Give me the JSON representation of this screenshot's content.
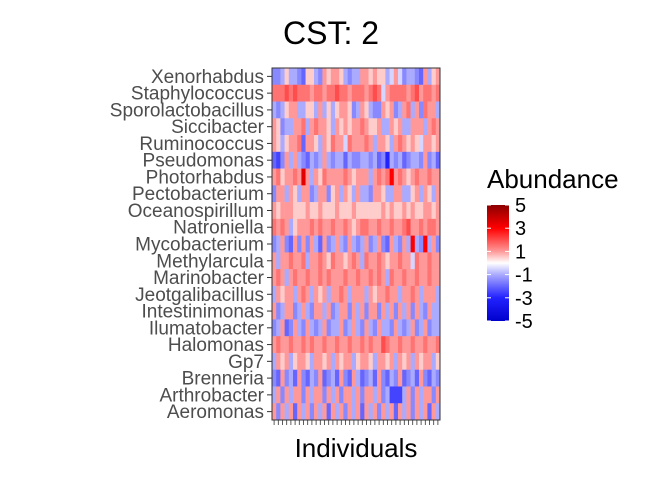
{
  "chart_data": {
    "type": "heatmap",
    "title": "CST: 2",
    "xlabel": "Individuals",
    "ylabel": "",
    "rows": [
      "Xenorhabdus",
      "Staphylococcus",
      "Sporolactobacillus",
      "Siccibacter",
      "Ruminococcus",
      "Pseudomonas",
      "Photorhabdus",
      "Pectobacterium",
      "Oceanospirillum",
      "Natroniella",
      "Mycobacterium",
      "Methylarcula",
      "Marinobacter",
      "Jeotgalibacillus",
      "Intestinimonas",
      "Ilumatobacter",
      "Halomonas",
      "Gp7",
      "Brenneria",
      "Arthrobacter",
      "Aeromonas"
    ],
    "n_columns": 40,
    "x_tick_labels": "none",
    "values": [
      [
        -1.5,
        -1.5,
        -1,
        0.5,
        -1,
        -1,
        -1.5,
        -2,
        0.5,
        0.5,
        -1,
        -1.5,
        1,
        0.5,
        1,
        1,
        0.5,
        -1,
        -1.5,
        -1,
        -1,
        1,
        1,
        0.5,
        1,
        0.5,
        0.5,
        -1,
        -0.5,
        1,
        -0.5,
        -1.5,
        -1,
        -1,
        -1.5,
        -2,
        1,
        -1,
        0.5,
        1
      ],
      [
        1.5,
        1.5,
        1.5,
        2,
        1.5,
        2,
        1.5,
        1.5,
        1.5,
        1,
        1.5,
        1.5,
        1,
        1.5,
        1.5,
        2,
        1.5,
        1.5,
        1,
        1.5,
        1.5,
        1.5,
        1,
        1.5,
        2,
        1.5,
        -0.5,
        1,
        1.5,
        1.5,
        1.5,
        1.5,
        1,
        1.5,
        2,
        1,
        1.5,
        1.5,
        1,
        1.5
      ],
      [
        -1,
        -1.5,
        -1,
        0.5,
        1,
        1,
        -1,
        -1,
        0.5,
        0.5,
        -1,
        1,
        -1,
        0.5,
        -1,
        0.5,
        1,
        1,
        0.5,
        -1.5,
        -1,
        1,
        0.5,
        -1,
        -1.5,
        -1.5,
        1,
        0.5,
        1,
        -1.5,
        -1,
        1,
        1.5,
        -1,
        1,
        -1.5,
        1.5,
        1,
        1,
        -1
      ],
      [
        1,
        0.5,
        -1.5,
        -1,
        -1,
        1,
        1,
        1.5,
        -1,
        1,
        1.5,
        1,
        1,
        0.5,
        -1,
        1,
        0.5,
        1,
        0.5,
        1,
        1,
        1.5,
        1,
        0.5,
        0.5,
        1,
        -1,
        -1,
        1,
        0.5,
        1,
        -1,
        -1,
        1,
        1,
        1,
        -1,
        1,
        1.5,
        1
      ],
      [
        1,
        0.5,
        -1,
        0.5,
        1,
        1,
        1.5,
        -2,
        1,
        1,
        0.5,
        -1,
        1,
        0.5,
        1.5,
        1,
        1,
        -0.5,
        1.5,
        1,
        1,
        1,
        1.5,
        1,
        -1,
        1,
        1,
        0.5,
        -1,
        1,
        1.5,
        1,
        0.5,
        1,
        0.5,
        -0.5,
        1,
        1,
        0.5,
        1
      ],
      [
        -2,
        -2.5,
        -1.5,
        1,
        -1,
        1,
        -1,
        -1.5,
        -2,
        -1,
        -1.5,
        -1,
        1,
        -1,
        -1.5,
        -1,
        -1,
        -2,
        -1,
        -1.5,
        -1.5,
        -1,
        -1,
        -1.5,
        -1,
        -2,
        -1.5,
        -3,
        -1,
        -1.5,
        -1,
        -2,
        -1.5,
        -1,
        -1,
        -1.5,
        1,
        -1.5,
        -1,
        -2
      ],
      [
        1,
        1.5,
        0.5,
        1,
        1,
        1.5,
        1,
        3.5,
        1,
        -1,
        1,
        0.5,
        1.5,
        1,
        1,
        1,
        1,
        1.5,
        1,
        0.5,
        1,
        1,
        1,
        -1,
        1,
        1.5,
        1,
        1.5,
        3,
        1,
        1.5,
        1,
        0.5,
        1,
        1.5,
        1,
        1,
        1.5,
        1,
        1
      ],
      [
        -1.5,
        1,
        1,
        -1,
        1,
        0.5,
        -1,
        1,
        1,
        -1.5,
        -1,
        1,
        1,
        -1.5,
        0.5,
        1,
        -1,
        1,
        0.5,
        -1,
        1,
        -1,
        -1,
        -1.5,
        1,
        1,
        0.5,
        -1,
        -1,
        1,
        1,
        -1,
        -1,
        0.5,
        1,
        -1,
        1,
        0.5,
        -1,
        1
      ],
      [
        1,
        0.5,
        1,
        1,
        1,
        0.5,
        0.5,
        0.5,
        1,
        0.5,
        0.5,
        1,
        0.5,
        0.5,
        0.5,
        1,
        0.5,
        0.5,
        0.5,
        1,
        0.5,
        0.5,
        0.5,
        0.5,
        0.5,
        0.5,
        1,
        0.5,
        1,
        0.5,
        0.5,
        1,
        0.5,
        1,
        0.5,
        0.5,
        1,
        1,
        0.5,
        1
      ],
      [
        1.5,
        1,
        1.5,
        1,
        -1,
        0.5,
        1,
        1,
        1,
        1.5,
        1,
        1.5,
        1,
        1,
        1.5,
        1,
        1,
        1.5,
        1,
        0.5,
        1,
        1.5,
        1.5,
        1,
        1,
        1.5,
        1,
        1,
        1.5,
        1,
        1,
        1.5,
        2,
        1,
        1,
        1.5,
        1,
        1.5,
        1.5,
        1
      ],
      [
        -1.5,
        -1,
        1,
        -1.5,
        -2,
        1,
        -1.5,
        1,
        -1.5,
        1,
        -1,
        -2,
        1,
        -1.5,
        -1,
        1,
        -1,
        -1.5,
        1,
        -1,
        -1.5,
        -1,
        1,
        -1.5,
        -1,
        1,
        -1.5,
        -2,
        1,
        -1,
        -1.5,
        1,
        -1,
        3,
        -1,
        -1.5,
        3,
        -1,
        1,
        -1.5
      ],
      [
        1,
        -1,
        1,
        1,
        1.5,
        1,
        1,
        1.5,
        -1,
        1,
        1,
        1.5,
        1,
        0.5,
        1.5,
        1,
        1,
        0.5,
        1,
        1.5,
        1,
        -1,
        1.5,
        1,
        1,
        1.5,
        1,
        0.5,
        1,
        1,
        1.5,
        1,
        1,
        -0.5,
        1.5,
        1,
        1,
        1.5,
        1,
        1
      ],
      [
        1,
        1.5,
        1,
        -1,
        1,
        1.5,
        1,
        1,
        1.5,
        1,
        1,
        1.5,
        1,
        1.5,
        1,
        1,
        1,
        1.5,
        1,
        1,
        1.5,
        1,
        1,
        1.5,
        1,
        1.5,
        1,
        -1,
        1.5,
        1,
        1,
        1.5,
        1,
        1,
        1.5,
        1,
        1,
        1.5,
        1,
        1
      ],
      [
        -1,
        1,
        0.5,
        1,
        1,
        -1,
        1,
        1.5,
        1,
        -1,
        1,
        0.5,
        1,
        -1,
        1,
        1,
        1.5,
        1,
        -1,
        1,
        1,
        1,
        -1,
        1,
        0.5,
        1,
        1,
        1.5,
        1,
        1,
        -1,
        1,
        1,
        1.5,
        1,
        -1,
        1,
        1,
        1,
        -1
      ],
      [
        1,
        -1.5,
        -1,
        1,
        1,
        -1.5,
        -1,
        1,
        -1,
        -1.5,
        1,
        1,
        -1,
        1,
        -1.5,
        -1,
        1,
        1,
        -1.5,
        1,
        -1,
        1,
        -1.5,
        1,
        1,
        -1.5,
        1,
        -1,
        1,
        -1.5,
        1,
        -1,
        1,
        -1.5,
        1,
        -1,
        -1.5,
        1,
        -1,
        -1
      ],
      [
        -1.5,
        -1,
        1,
        -2,
        -1.5,
        1,
        -1,
        -1.5,
        1,
        -1,
        -1.5,
        -1,
        1,
        -1.5,
        -1,
        -1,
        1,
        -1.5,
        -1,
        1,
        -1,
        -1.5,
        1,
        -1,
        -1.5,
        1,
        -1,
        -1,
        -1.5,
        1,
        -1,
        -1.5,
        -1,
        1,
        -1.5,
        -1,
        1,
        -1.5,
        -1,
        -1
      ],
      [
        1,
        1.5,
        1,
        1,
        1.5,
        1,
        1,
        1.5,
        1,
        1.5,
        1,
        1,
        1.5,
        1,
        1,
        1.5,
        1,
        1,
        1.5,
        1,
        1,
        1.5,
        1,
        1.5,
        1,
        1,
        2,
        1.5,
        1,
        1,
        1.5,
        1,
        1,
        1.5,
        1,
        1,
        1.5,
        1,
        1,
        1.5
      ],
      [
        -1,
        1,
        0.5,
        1,
        -1,
        0.5,
        1,
        1,
        0.5,
        -1,
        1,
        1,
        0.5,
        1,
        -1,
        1,
        0.5,
        1,
        1,
        -1,
        0.5,
        1,
        1,
        0.5,
        -1,
        1,
        1,
        0.5,
        1,
        -1,
        1,
        0.5,
        1,
        -1,
        1,
        0.5,
        1,
        1,
        -1,
        0.5
      ],
      [
        -1.5,
        -2,
        1,
        -1.5,
        -1,
        -2,
        1,
        -1.5,
        -2,
        -1,
        -1.5,
        1,
        -2,
        -1.5,
        -1,
        -2,
        1,
        -1.5,
        -2,
        1,
        -1,
        -2,
        -1.5,
        -1,
        -2,
        1,
        -1.5,
        -2,
        -1,
        -1.5,
        1,
        -2,
        -1.5,
        -1,
        -2,
        1,
        -1.5,
        -2,
        -1,
        -1.5
      ],
      [
        -1,
        1,
        -1.5,
        1,
        -1,
        1,
        1,
        -1.5,
        1,
        -1,
        1,
        1,
        -1.5,
        1,
        -1,
        1,
        -1.5,
        1,
        1,
        -1,
        1,
        -1.5,
        1,
        1,
        -1,
        1,
        -1.5,
        -1,
        -2.5,
        -2.5,
        -2.5,
        -1,
        1,
        -1.5,
        1,
        -1,
        1,
        1,
        -1.5,
        1
      ],
      [
        1,
        -1.5,
        1,
        -1,
        1,
        -2,
        1,
        -1,
        1,
        -1.5,
        1,
        -1,
        1,
        -2,
        1,
        -1,
        1,
        -1.5,
        1,
        -1,
        1,
        -2,
        1,
        -1,
        1,
        -1.5,
        1,
        -1,
        1,
        -2,
        1,
        -1,
        1,
        -1.5,
        1,
        -1,
        1,
        -2,
        1,
        -1
      ]
    ],
    "legend": {
      "title": "Abundance",
      "position": "right",
      "ticks": [
        5,
        3,
        1,
        -1,
        -3,
        -5
      ],
      "range": [
        -5,
        5
      ],
      "colors": {
        "low": "#0000cc",
        "mid": "#ffffff",
        "high": "#8b0000"
      }
    }
  }
}
